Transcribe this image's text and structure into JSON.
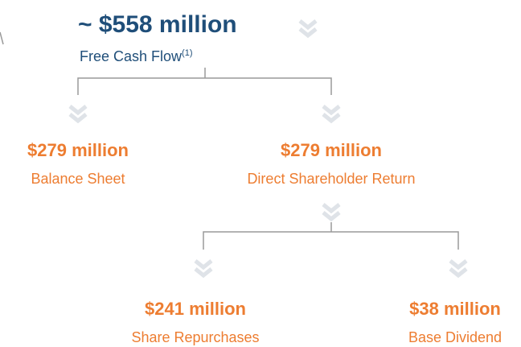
{
  "header": {
    "title": "~ $558 million",
    "subtitle": "Free Cash Flow",
    "footnote": "(1)"
  },
  "nodes": [
    {
      "amount": "$279 million",
      "label": "Balance Sheet"
    },
    {
      "amount": "$279 million",
      "label": "Direct Shareholder Return"
    },
    {
      "amount": "$241 million",
      "label": "Share Repurchases"
    },
    {
      "amount": "$38 million",
      "label": "Base Dividend"
    }
  ]
}
